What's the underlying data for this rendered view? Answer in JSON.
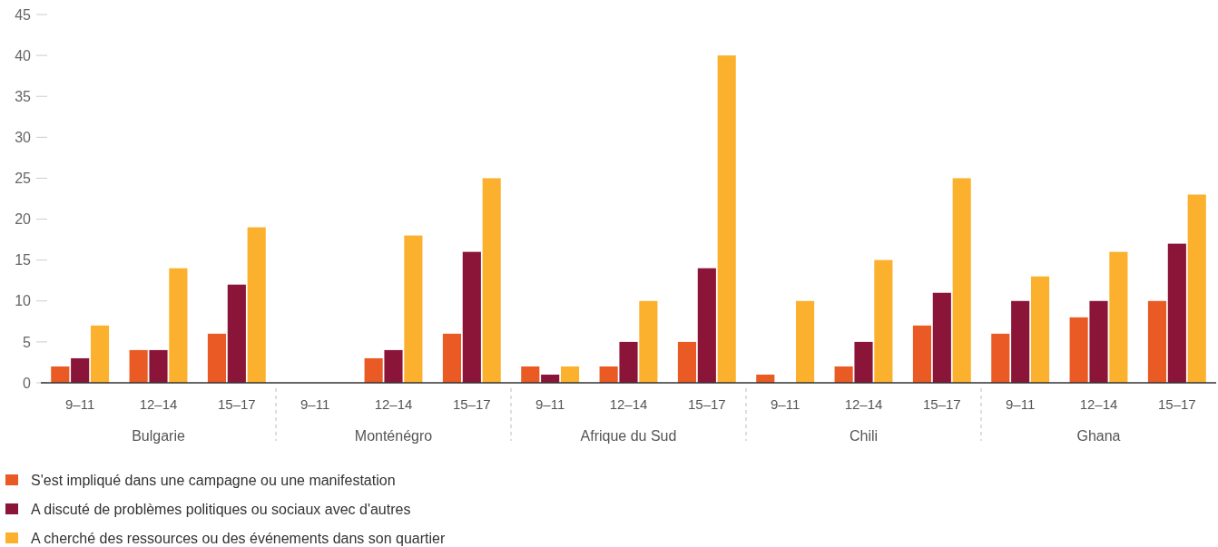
{
  "chart_data": {
    "type": "bar",
    "categories": [
      "9–11",
      "12–14",
      "15–17",
      "9–11",
      "12–14",
      "15–17",
      "9–11",
      "12–14",
      "15–17",
      "9–11",
      "12–14",
      "15–17",
      "9–11",
      "12–14",
      "15–17"
    ],
    "series": [
      {
        "name": "S'est impliqué dans une campagne ou une manifestation",
        "color": "#e95a24",
        "values": [
          2,
          4,
          6,
          null,
          3,
          6,
          2,
          2,
          5,
          1,
          2,
          7,
          6,
          8,
          10
        ]
      },
      {
        "name": "A discuté de problèmes politiques ou sociaux avec d'autres",
        "color": "#8b1538",
        "values": [
          3,
          4,
          12,
          null,
          4,
          16,
          1,
          5,
          14,
          null,
          5,
          11,
          10,
          10,
          17
        ]
      },
      {
        "name": "A cherché des ressources ou des événements dans son quartier",
        "color": "#fbb12d",
        "values": [
          7,
          14,
          19,
          null,
          18,
          25,
          2,
          10,
          40,
          10,
          15,
          25,
          13,
          16,
          23
        ]
      }
    ],
    "annotations": [
      "Bulgarie",
      "Monténégro",
      "Afrique du Sud",
      "Chili",
      "Ghana"
    ],
    "ylim": [
      0,
      45
    ],
    "yticks": [
      0,
      5,
      10,
      15,
      20,
      25,
      30,
      35,
      40,
      45
    ],
    "grid": false,
    "legend": "bottom left"
  }
}
